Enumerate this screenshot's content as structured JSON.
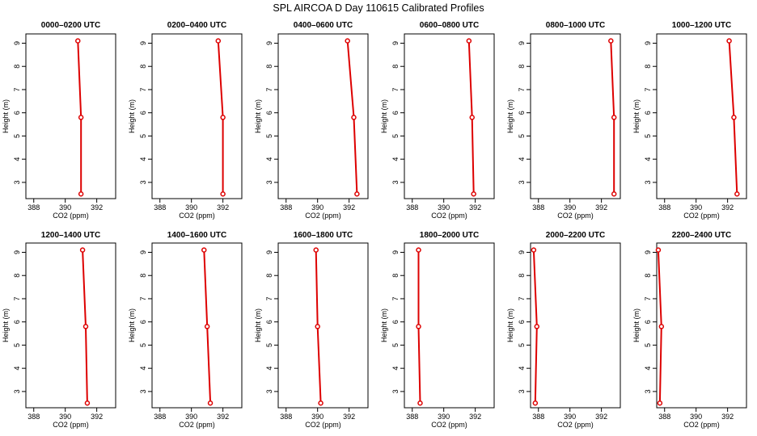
{
  "title": "SPL AIRCOA D  Day 110615  Calibrated Profiles",
  "chart_data": [
    {
      "type": "line",
      "title": "0000–0200 UTC",
      "xlabel": "CO2 (ppm)",
      "ylabel": "Height (m)",
      "xlim": [
        387.5,
        393.2
      ],
      "ylim": [
        2.3,
        9.4
      ],
      "x_ticks": [
        388,
        390,
        392
      ],
      "y_ticks": [
        3,
        4,
        5,
        6,
        7,
        8,
        9
      ],
      "series": [
        {
          "x": [
            390.8,
            391.0,
            391.0
          ],
          "y": [
            9.1,
            5.8,
            2.5
          ]
        }
      ]
    },
    {
      "type": "line",
      "title": "0200–0400 UTC",
      "xlabel": "CO2 (ppm)",
      "ylabel": "Height (m)",
      "xlim": [
        387.5,
        393.2
      ],
      "ylim": [
        2.3,
        9.4
      ],
      "x_ticks": [
        388,
        390,
        392
      ],
      "y_ticks": [
        3,
        4,
        5,
        6,
        7,
        8,
        9
      ],
      "series": [
        {
          "x": [
            391.7,
            392.0,
            392.0
          ],
          "y": [
            9.1,
            5.8,
            2.5
          ]
        }
      ]
    },
    {
      "type": "line",
      "title": "0400–0600 UTC",
      "xlabel": "CO2 (ppm)",
      "ylabel": "Height (m)",
      "xlim": [
        387.5,
        393.2
      ],
      "ylim": [
        2.3,
        9.4
      ],
      "x_ticks": [
        388,
        390,
        392
      ],
      "y_ticks": [
        3,
        4,
        5,
        6,
        7,
        8,
        9
      ],
      "series": [
        {
          "x": [
            391.9,
            392.3,
            392.5
          ],
          "y": [
            9.1,
            5.8,
            2.5
          ]
        }
      ]
    },
    {
      "type": "line",
      "title": "0600–0800 UTC",
      "xlabel": "CO2 (ppm)",
      "ylabel": "Height (m)",
      "xlim": [
        387.5,
        393.2
      ],
      "ylim": [
        2.3,
        9.4
      ],
      "x_ticks": [
        388,
        390,
        392
      ],
      "y_ticks": [
        3,
        4,
        5,
        6,
        7,
        8,
        9
      ],
      "series": [
        {
          "x": [
            391.6,
            391.8,
            391.9
          ],
          "y": [
            9.1,
            5.8,
            2.5
          ]
        }
      ]
    },
    {
      "type": "line",
      "title": "0800–1000 UTC",
      "xlabel": "CO2 (ppm)",
      "ylabel": "Height (m)",
      "xlim": [
        387.5,
        393.2
      ],
      "ylim": [
        2.3,
        9.4
      ],
      "x_ticks": [
        388,
        390,
        392
      ],
      "y_ticks": [
        3,
        4,
        5,
        6,
        7,
        8,
        9
      ],
      "series": [
        {
          "x": [
            392.6,
            392.8,
            392.8
          ],
          "y": [
            9.1,
            5.8,
            2.5
          ]
        }
      ]
    },
    {
      "type": "line",
      "title": "1000–1200 UTC",
      "xlabel": "CO2 (ppm)",
      "ylabel": "Height (m)",
      "xlim": [
        387.5,
        393.2
      ],
      "ylim": [
        2.3,
        9.4
      ],
      "x_ticks": [
        388,
        390,
        392
      ],
      "y_ticks": [
        3,
        4,
        5,
        6,
        7,
        8,
        9
      ],
      "series": [
        {
          "x": [
            392.1,
            392.4,
            392.6
          ],
          "y": [
            9.1,
            5.8,
            2.5
          ]
        }
      ]
    },
    {
      "type": "line",
      "title": "1200–1400 UTC",
      "xlabel": "CO2 (ppm)",
      "ylabel": "Height (m)",
      "xlim": [
        387.5,
        393.2
      ],
      "ylim": [
        2.3,
        9.4
      ],
      "x_ticks": [
        388,
        390,
        392
      ],
      "y_ticks": [
        3,
        4,
        5,
        6,
        7,
        8,
        9
      ],
      "series": [
        {
          "x": [
            391.1,
            391.3,
            391.4
          ],
          "y": [
            9.1,
            5.8,
            2.5
          ]
        }
      ]
    },
    {
      "type": "line",
      "title": "1400–1600 UTC",
      "xlabel": "CO2 (ppm)",
      "ylabel": "Height (m)",
      "xlim": [
        387.5,
        393.2
      ],
      "ylim": [
        2.3,
        9.4
      ],
      "x_ticks": [
        388,
        390,
        392
      ],
      "y_ticks": [
        3,
        4,
        5,
        6,
        7,
        8,
        9
      ],
      "series": [
        {
          "x": [
            390.8,
            391.0,
            391.2
          ],
          "y": [
            9.1,
            5.8,
            2.5
          ]
        }
      ]
    },
    {
      "type": "line",
      "title": "1600–1800 UTC",
      "xlabel": "CO2 (ppm)",
      "ylabel": "Height (m)",
      "xlim": [
        387.5,
        393.2
      ],
      "ylim": [
        2.3,
        9.4
      ],
      "x_ticks": [
        388,
        390,
        392
      ],
      "y_ticks": [
        3,
        4,
        5,
        6,
        7,
        8,
        9
      ],
      "series": [
        {
          "x": [
            389.9,
            390.0,
            390.2
          ],
          "y": [
            9.1,
            5.8,
            2.5
          ]
        }
      ]
    },
    {
      "type": "line",
      "title": "1800–2000 UTC",
      "xlabel": "CO2 (ppm)",
      "ylabel": "Height (m)",
      "xlim": [
        387.5,
        393.2
      ],
      "ylim": [
        2.3,
        9.4
      ],
      "x_ticks": [
        388,
        390,
        392
      ],
      "y_ticks": [
        3,
        4,
        5,
        6,
        7,
        8,
        9
      ],
      "series": [
        {
          "x": [
            388.4,
            388.4,
            388.5
          ],
          "y": [
            9.1,
            5.8,
            2.5
          ]
        }
      ]
    },
    {
      "type": "line",
      "title": "2000–2200 UTC",
      "xlabel": "CO2 (ppm)",
      "ylabel": "Height (m)",
      "xlim": [
        387.5,
        393.2
      ],
      "ylim": [
        2.3,
        9.4
      ],
      "x_ticks": [
        388,
        390,
        392
      ],
      "y_ticks": [
        3,
        4,
        5,
        6,
        7,
        8,
        9
      ],
      "series": [
        {
          "x": [
            387.7,
            387.9,
            387.8
          ],
          "y": [
            9.1,
            5.8,
            2.5
          ]
        }
      ]
    },
    {
      "type": "line",
      "title": "2200–2400 UTC",
      "xlabel": "CO2 (ppm)",
      "ylabel": "Height (m)",
      "xlim": [
        387.5,
        393.2
      ],
      "ylim": [
        2.3,
        9.4
      ],
      "x_ticks": [
        388,
        390,
        392
      ],
      "y_ticks": [
        3,
        4,
        5,
        6,
        7,
        8,
        9
      ],
      "series": [
        {
          "x": [
            387.6,
            387.8,
            387.7
          ],
          "y": [
            9.1,
            5.8,
            2.5
          ]
        }
      ]
    }
  ],
  "colors": {
    "series": "#dd0000",
    "axis": "#000000",
    "background": "#ffffff"
  }
}
